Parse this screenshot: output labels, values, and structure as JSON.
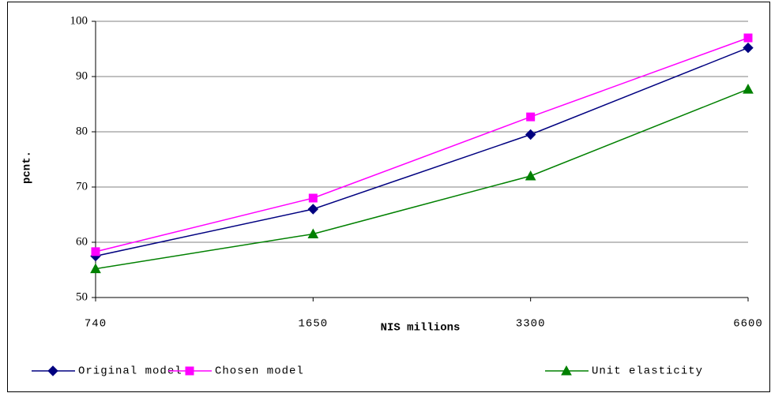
{
  "chart_data": {
    "type": "line",
    "x_label": "NIS millions",
    "y_label": "pcnt.",
    "categories": [
      "740",
      "1650",
      "3300",
      "6600"
    ],
    "series": [
      {
        "name": "Original model",
        "color": "#000080",
        "marker": "diamond",
        "values": [
          57.5,
          66,
          79.5,
          95.2
        ]
      },
      {
        "name": "Chosen model",
        "color": "#ff00ff",
        "marker": "square",
        "values": [
          58.3,
          68,
          82.7,
          97
        ]
      },
      {
        "name": "Unit elasticity",
        "color": "#008000",
        "marker": "triangle",
        "values": [
          55.2,
          61.5,
          72,
          87.7
        ]
      }
    ],
    "ylim": [
      50,
      100
    ],
    "yticks": [
      50,
      60,
      70,
      80,
      90,
      100
    ],
    "grid": true
  }
}
